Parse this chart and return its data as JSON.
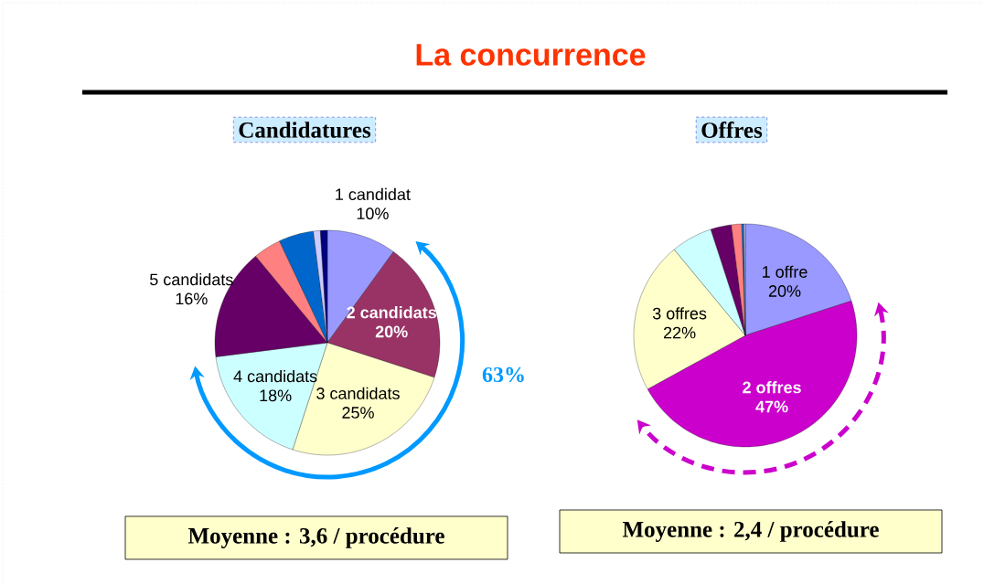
{
  "chart_data": [
    {
      "type": "pie",
      "title": "La concurrence",
      "subtitle": "Candidatures",
      "categories": [
        "1 candidat",
        "2 candidats",
        "3 candidats",
        "4 candidats",
        "5 candidats",
        null,
        null,
        null,
        null
      ],
      "values": [
        10,
        20,
        25,
        18,
        16,
        4,
        5,
        1,
        1
      ],
      "colors": [
        "#9999ff",
        "#993366",
        "#ffffcc",
        "#ccffff",
        "#660066",
        "#ff8080",
        "#0066cc",
        "#ccccff",
        "#000080"
      ],
      "value_labels": [
        "10%",
        "20%",
        "25%",
        "18%",
        "16%",
        null,
        null,
        null,
        null
      ],
      "annotations": [
        "63%",
        "Moyenne : 3,6 / procédure"
      ]
    },
    {
      "type": "pie",
      "subtitle": "Offres",
      "categories": [
        "1 offre",
        "2 offres",
        "3 offres",
        null,
        null,
        null,
        null,
        null
      ],
      "values": [
        20,
        47,
        22,
        6,
        3,
        1.5,
        0.3,
        0.2
      ],
      "colors": [
        "#9999ff",
        "#cc00cc",
        "#ffffcc",
        "#ccffff",
        "#660066",
        "#ff8080",
        "#0066cc",
        "#ccccff"
      ],
      "value_labels": [
        "20%",
        "47%",
        "22%",
        null,
        null,
        null,
        null,
        null
      ],
      "annotations": [
        "Moyenne : 2,4 / procédure"
      ]
    }
  ]
}
